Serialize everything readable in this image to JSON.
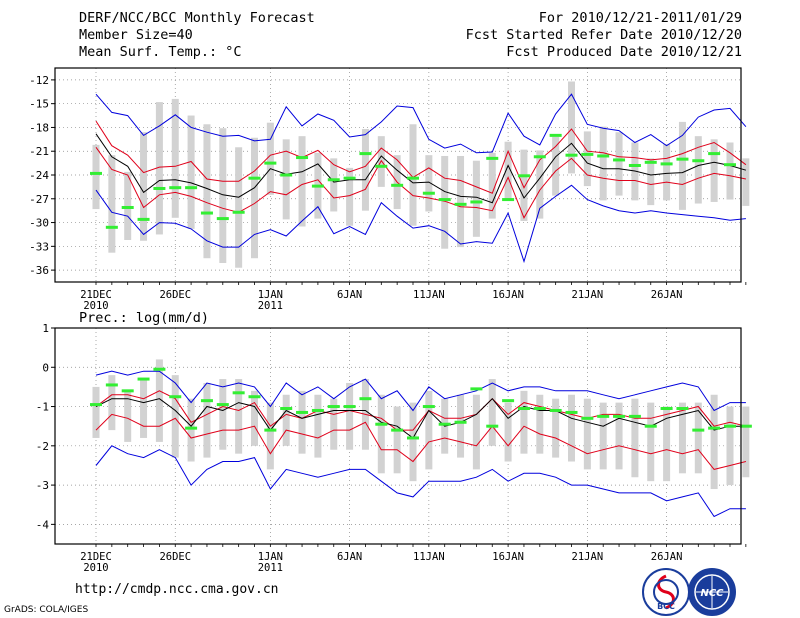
{
  "header": {
    "left_line1": "DERF/NCC/BCC Monthly Forecast",
    "left_line2": "Member Size=40",
    "left_line3": "Mean Surf. Temp.: °C",
    "right_line1": "For 2010/12/21-2011/01/29",
    "right_line2": "Fcst Started Refer Date 2010/12/20",
    "right_line3": "Fcst Produced Date 2010/12/21"
  },
  "footer": {
    "url": "http://cmdp.ncc.cma.gov.cn",
    "credit": "GrADS: COLA/IGES",
    "logo_left": "BCC",
    "logo_right": "NCC"
  },
  "colors": {
    "blue": "#0000dd",
    "red": "#e0001a",
    "black": "#000000",
    "green": "#33ee33",
    "box": "#d2d2d2"
  },
  "chart_data": [
    {
      "type": "box-ensemble",
      "title": "Mean Surf. Temp.: °C",
      "ylim": [
        -37.5,
        -10.5
      ],
      "yticks": [
        -12,
        -15,
        -18,
        -21,
        -24,
        -27,
        -30,
        -33,
        -36
      ],
      "ytick_labels": [
        "-12",
        "-15",
        "-18",
        "-21",
        "-24",
        "-27",
        "-30",
        "-33",
        "-36"
      ],
      "xtick_labels": [
        {
          "day": 0,
          "label": "21DEC",
          "sub": "2010"
        },
        {
          "day": 5,
          "label": "26DEC",
          "sub": ""
        },
        {
          "day": 11,
          "label": "1JAN",
          "sub": "2011"
        },
        {
          "day": 16,
          "label": "6JAN",
          "sub": ""
        },
        {
          "day": 21,
          "label": "11JAN",
          "sub": ""
        },
        {
          "day": 26,
          "label": "16JAN",
          "sub": ""
        },
        {
          "day": 31,
          "label": "21JAN",
          "sub": ""
        },
        {
          "day": 36,
          "label": "26JAN",
          "sub": ""
        }
      ],
      "blue_high": [
        -13.8,
        -16.1,
        -16.5,
        -19,
        -17.8,
        -16.4,
        -18,
        -18.6,
        -19.1,
        -19,
        -19.7,
        -19.5,
        -15.4,
        -17.8,
        -16.3,
        -17.1,
        -19.2,
        -18.9,
        -17.3,
        -15.3,
        -15.5,
        -19.5,
        -20.6,
        -20.1,
        -21.2,
        -21.1,
        -16.2,
        -19.1,
        -20.2,
        -16.3,
        -13.8,
        -17.6,
        -18.1,
        -18.4,
        -19.9,
        -18.9,
        -20.3,
        -19,
        -16.7,
        -15.8,
        -15.6,
        -17.9
      ],
      "red_high": [
        -17.2,
        -20.3,
        -21.5,
        -23.7,
        -23,
        -22.9,
        -22.3,
        -24.5,
        -24.8,
        -24.8,
        -23.5,
        -21.5,
        -21,
        -21.8,
        -20.9,
        -22.7,
        -23.6,
        -22.9,
        -20.6,
        -22.1,
        -24.3,
        -23.1,
        -24.4,
        -24.7,
        -25.5,
        -26.3,
        -21,
        -25.6,
        -22.1,
        -20.4,
        -18.2,
        -21,
        -21.2,
        -21.7,
        -21.8,
        -22.1,
        -21.9,
        -21.3,
        -20.5,
        -19.9,
        -21.2,
        -22.7
      ],
      "black_mean": [
        -18.8,
        -21.7,
        -22.9,
        -26.2,
        -24.7,
        -24.6,
        -25,
        -25.7,
        -26.5,
        -26.8,
        -25.6,
        -23.2,
        -23.9,
        -23.6,
        -22.6,
        -24.9,
        -24.6,
        -24.6,
        -21.6,
        -23.4,
        -25,
        -24.9,
        -26.1,
        -26.7,
        -26.8,
        -27.5,
        -22.8,
        -26.9,
        -24.4,
        -21.7,
        -20,
        -22.5,
        -23.2,
        -23.2,
        -23.5,
        -24,
        -23.8,
        -23.7,
        -22.8,
        -22.4,
        -22.8,
        -23.4
      ],
      "red_low": [
        -20.5,
        -23.3,
        -24,
        -28.1,
        -26.5,
        -26.2,
        -26.7,
        -27.5,
        -28.2,
        -28.7,
        -27.6,
        -26.1,
        -26.5,
        -25.2,
        -24.6,
        -26.9,
        -26.6,
        -25.8,
        -22.2,
        -24.9,
        -26.6,
        -26.9,
        -27.3,
        -28,
        -28.1,
        -28.5,
        -24.3,
        -29.4,
        -25.9,
        -23.5,
        -21.9,
        -24,
        -24.4,
        -24.7,
        -24.7,
        -25.2,
        -24.9,
        -25.2,
        -24.4,
        -23.8,
        -24.1,
        -24.5
      ],
      "blue_low": [
        -25.9,
        -28.7,
        -29.2,
        -31.5,
        -30,
        -30.1,
        -30.8,
        -32.3,
        -33.1,
        -33.1,
        -31.5,
        -30.9,
        -31.7,
        -29.8,
        -28,
        -31.4,
        -30.5,
        -31.5,
        -27.5,
        -29.2,
        -30.7,
        -30.4,
        -31.1,
        -32.7,
        -32.4,
        -32.6,
        -28.8,
        -34.9,
        -28.2,
        -26.7,
        -25.3,
        -27.1,
        -27.9,
        -28.5,
        -28.8,
        -28.5,
        -28.8,
        -29,
        -29.2,
        -29.4,
        -29.7,
        -29.5
      ],
      "box_high": [
        -20.2,
        -21.5,
        -23.6,
        -18.6,
        -14.8,
        -14.4,
        -16.5,
        -17.6,
        -18.1,
        -20.5,
        -19.3,
        -17.4,
        -19.5,
        -19.1,
        -21.2,
        -21.9,
        -23.1,
        -18.2,
        -19.1,
        -21.5,
        -17.6,
        -21.5,
        -21.6,
        -21.6,
        -22.2,
        -21.2,
        -19.8,
        -20.8,
        -20.9,
        -19.2,
        -12.2,
        -18.5,
        -17.9,
        -18.6,
        -19.9,
        -21.9,
        -20.1,
        -17.3,
        -19.1,
        -19.5,
        -19.9,
        -21.9
      ],
      "box_low": [
        -28.3,
        -33.8,
        -32.2,
        -32.3,
        -31.5,
        -29.4,
        -30.8,
        -34.5,
        -35.1,
        -35.7,
        -34.5,
        -26.5,
        -29.6,
        -30.5,
        -29.5,
        -28.6,
        -30.4,
        -28.5,
        -25.5,
        -28.3,
        -30.4,
        -28.6,
        -33.3,
        -33.1,
        -31.8,
        -29.5,
        -27.1,
        -29.8,
        -29.5,
        -26.6,
        -23.8,
        -25.4,
        -27.2,
        -26.6,
        -27.2,
        -27.8,
        -27.2,
        -28.4,
        -27.6,
        -27.4,
        -27.1,
        -27.9
      ],
      "green_obs": [
        -23.8,
        -30.6,
        -28.1,
        -29.6,
        -25.7,
        -25.6,
        -25.6,
        -28.8,
        -29.5,
        -28.7,
        -24.4,
        -22.5,
        -24,
        -21.8,
        -25.4,
        -24.6,
        -24.4,
        -21.3,
        -22.9,
        -25.3,
        -24.4,
        -26.3,
        -27.1,
        -27.7,
        -27.4,
        -21.9,
        -27.1,
        -24.1,
        -21.7,
        -19,
        -21.5,
        -21.4,
        -21.6,
        -22.1,
        -22.8,
        -22.4,
        -22.6,
        -22,
        -22.2,
        -21.3,
        -22.7,
        null
      ]
    },
    {
      "type": "box-ensemble",
      "title": "Prec.: log(mm/d)",
      "ylim": [
        -4.5,
        1
      ],
      "yticks": [
        1,
        0,
        -1,
        -2,
        -3,
        -4
      ],
      "ytick_labels": [
        "1",
        "0",
        "-1",
        "-2",
        "-3",
        "-4"
      ],
      "xtick_labels": [
        {
          "day": 0,
          "label": "21DEC",
          "sub": "2010"
        },
        {
          "day": 5,
          "label": "26DEC",
          "sub": ""
        },
        {
          "day": 11,
          "label": "1JAN",
          "sub": "2011"
        },
        {
          "day": 16,
          "label": "6JAN",
          "sub": ""
        },
        {
          "day": 21,
          "label": "11JAN",
          "sub": ""
        },
        {
          "day": 26,
          "label": "16JAN",
          "sub": ""
        },
        {
          "day": 31,
          "label": "21JAN",
          "sub": ""
        },
        {
          "day": 36,
          "label": "26JAN",
          "sub": ""
        }
      ],
      "blue_high": [
        -0.2,
        -0.1,
        -0.2,
        -0.1,
        -0.1,
        -0.4,
        -0.9,
        -0.4,
        -0.5,
        -0.4,
        -0.5,
        -1.0,
        -0.4,
        -0.7,
        -0.5,
        -0.8,
        -0.5,
        -0.3,
        -0.8,
        -0.6,
        -1.1,
        -0.5,
        -0.8,
        -0.7,
        -0.6,
        -0.4,
        -0.6,
        -0.5,
        -0.5,
        -0.6,
        -0.6,
        -0.6,
        -0.7,
        -0.8,
        -0.7,
        -0.6,
        -0.5,
        -0.4,
        -0.5,
        -1.1,
        -0.9,
        -0.9
      ],
      "red_high": [
        -1.0,
        -0.7,
        -0.7,
        -0.8,
        -0.6,
        -0.8,
        -1.4,
        -1.2,
        -1.0,
        -1.1,
        -0.9,
        -1.5,
        -1.2,
        -1.3,
        -1.1,
        -1.2,
        -1.1,
        -1.2,
        -1.3,
        -1.6,
        -1.6,
        -1.1,
        -1.3,
        -1.3,
        -1.2,
        -0.8,
        -1.2,
        -0.9,
        -1.0,
        -1.1,
        -1.2,
        -1.3,
        -1.2,
        -1.2,
        -1.3,
        -1.3,
        -1.2,
        -1.1,
        -1.0,
        -1.5,
        -1.4,
        -1.5
      ],
      "black_mean": [
        -1.0,
        -0.8,
        -0.8,
        -0.9,
        -0.8,
        -1.1,
        -1.5,
        -1.0,
        -1.1,
        -0.9,
        -1.0,
        -1.6,
        -1.1,
        -1.3,
        -1.2,
        -1.1,
        -1.1,
        -1.1,
        -1.4,
        -1.5,
        -1.8,
        -1.1,
        -1.5,
        -1.4,
        -1.2,
        -0.8,
        -1.3,
        -1.0,
        -1.1,
        -1.1,
        -1.3,
        -1.4,
        -1.5,
        -1.3,
        -1.4,
        -1.5,
        -1.3,
        -1.2,
        -1.1,
        -1.6,
        -1.5,
        -1.5
      ],
      "red_low": [
        -1.6,
        -1.2,
        -1.3,
        -1.5,
        -1.5,
        -1.3,
        -1.8,
        -1.7,
        -1.6,
        -1.6,
        -1.5,
        -2.2,
        -1.6,
        -1.7,
        -1.8,
        -1.6,
        -1.6,
        -1.4,
        -2.1,
        -2.1,
        -2.4,
        -1.9,
        -1.8,
        -1.9,
        -2.0,
        -1.5,
        -2.0,
        -1.5,
        -1.7,
        -1.8,
        -2.0,
        -2.2,
        -2.1,
        -2.0,
        -2.1,
        -2.2,
        -2.1,
        -2.2,
        -2.1,
        -2.6,
        -2.5,
        -2.4
      ],
      "blue_low": [
        -2.5,
        -2.0,
        -2.2,
        -2.3,
        -2.1,
        -2.3,
        -3.0,
        -2.6,
        -2.4,
        -2.4,
        -2.3,
        -3.1,
        -2.6,
        -2.7,
        -2.8,
        -2.7,
        -2.6,
        -2.6,
        -2.9,
        -3.2,
        -3.3,
        -2.9,
        -2.9,
        -2.9,
        -2.8,
        -2.6,
        -2.9,
        -2.7,
        -2.7,
        -2.8,
        -3.0,
        -3.0,
        -3.1,
        -3.2,
        -3.2,
        -3.2,
        -3.4,
        -3.3,
        -3.2,
        -3.8,
        -3.6,
        -3.6
      ],
      "box_high": [
        -0.5,
        -0.2,
        -0.6,
        -0.3,
        0.2,
        -0.2,
        -0.8,
        -0.4,
        -0.3,
        -0.3,
        -0.6,
        -0.9,
        -0.7,
        -0.6,
        -0.7,
        -0.8,
        -0.4,
        -0.3,
        -0.7,
        -1.0,
        -0.9,
        -0.6,
        -0.8,
        -0.7,
        -0.7,
        -0.3,
        -0.9,
        -0.6,
        -0.7,
        -0.8,
        -0.7,
        -0.8,
        -0.9,
        -0.9,
        -0.8,
        -0.9,
        -1.0,
        -0.9,
        -0.9,
        -0.7,
        -1.0,
        -1.0
      ],
      "box_low": [
        -1.8,
        -1.6,
        -1.9,
        -1.8,
        -1.9,
        -2.3,
        -2.4,
        -2.3,
        -2.1,
        -2.2,
        -2.0,
        -2.6,
        -2.0,
        -2.2,
        -2.3,
        -2.1,
        -2.1,
        -2.1,
        -2.7,
        -2.7,
        -2.9,
        -2.6,
        -2.2,
        -2.3,
        -2.6,
        -2.0,
        -2.4,
        -2.2,
        -2.2,
        -2.3,
        -2.4,
        -2.6,
        -2.6,
        -2.6,
        -2.8,
        -2.9,
        -2.9,
        -2.7,
        -2.7,
        -3.1,
        -3.0,
        -2.8
      ],
      "green_obs": [
        -0.95,
        -0.45,
        -0.6,
        -0.3,
        -0.05,
        -0.75,
        -1.55,
        -0.85,
        -0.95,
        -0.65,
        -0.75,
        -1.6,
        -1.05,
        -1.15,
        -1.1,
        -1.0,
        -1.0,
        -0.8,
        -1.45,
        -1.6,
        -1.8,
        -1.0,
        -1.45,
        -1.4,
        -0.55,
        -1.5,
        -0.85,
        -1.05,
        -1.05,
        -1.1,
        -1.15,
        -1.3,
        -1.25,
        -1.25,
        -1.25,
        -1.5,
        -1.05,
        -1.05,
        -1.6,
        -1.55,
        -1.5,
        -1.5
      ]
    }
  ]
}
